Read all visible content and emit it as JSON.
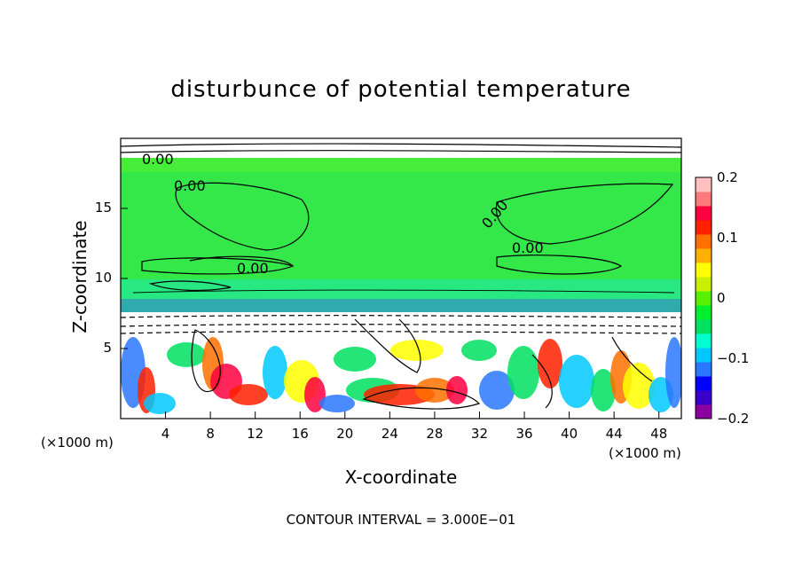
{
  "chart_data": {
    "type": "heatmap",
    "title": "disturbunce of potential temperature",
    "xlabel": "X-coordinate",
    "ylabel": "Z-coordinate",
    "x_unit": "(×1000 m)",
    "y_unit": "(×1000 m)",
    "xlim": [
      0,
      50
    ],
    "ylim": [
      0,
      20
    ],
    "x_ticks": [
      "4",
      "8",
      "12",
      "16",
      "20",
      "24",
      "28",
      "32",
      "36",
      "40",
      "44",
      "48"
    ],
    "y_ticks": [
      "5",
      "10",
      "15"
    ],
    "colorbar": {
      "range": [
        -0.2,
        0.2
      ],
      "tick_labels": [
        "0.2",
        "0.1",
        "0",
        "−0.1",
        "−0.2"
      ],
      "colors": [
        "#8a00a0",
        "#3a00c8",
        "#0000ff",
        "#2a78ff",
        "#00c8ff",
        "#00ffd0",
        "#00e060",
        "#00f030",
        "#58f000",
        "#c8f000",
        "#ffff00",
        "#ffb000",
        "#ff7000",
        "#ff2000",
        "#ff0040",
        "#ff7a7a",
        "#ffc0c0"
      ]
    },
    "contour_labels": [
      "0.00",
      "0.00",
      "0.00",
      "0.00",
      "0.00"
    ],
    "footer": "CONTOUR INTERVAL = 3.000E−01"
  }
}
